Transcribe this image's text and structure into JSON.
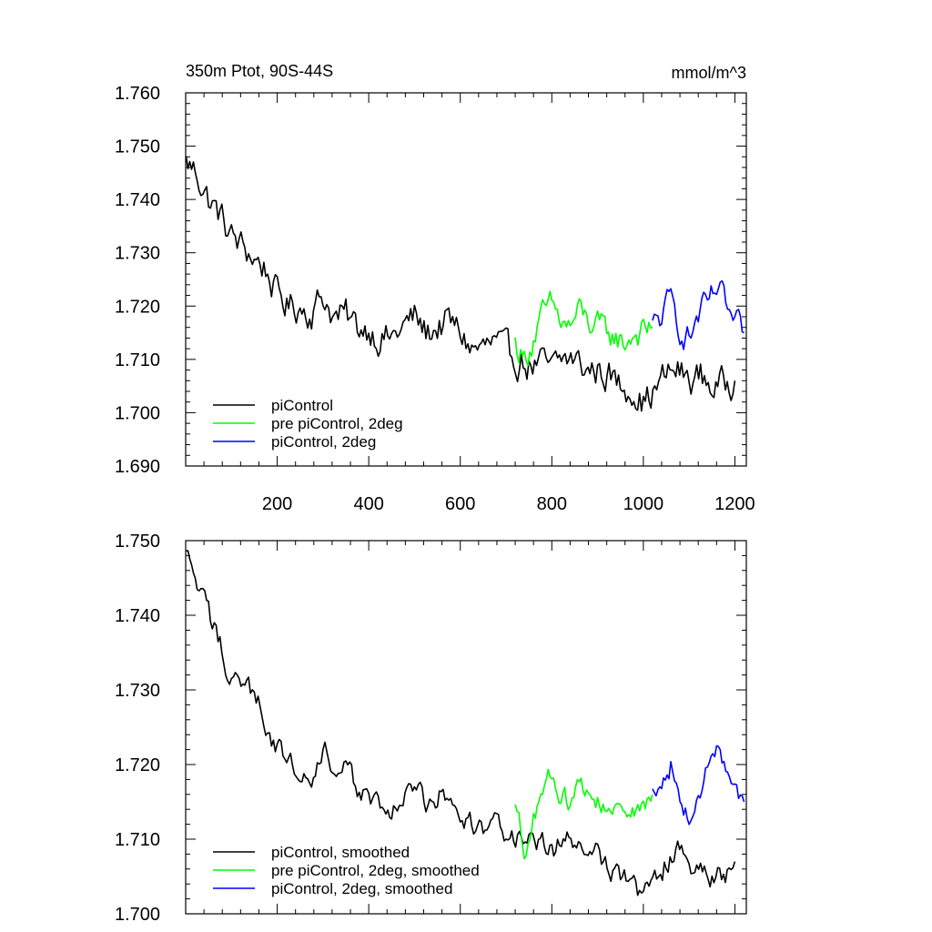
{
  "chart_data": [
    {
      "type": "line",
      "title": "350m Ptot, 90S-44S",
      "units": "mmol/m^3",
      "xlim": [
        0,
        1225
      ],
      "ylim": [
        1.69,
        1.76
      ],
      "xticks": [
        200,
        400,
        600,
        800,
        1000,
        1200
      ],
      "xtick_labels": [
        "200",
        "400",
        "600",
        "800",
        "1000",
        "1200"
      ],
      "yticks": [
        1.69,
        1.7,
        1.71,
        1.72,
        1.73,
        1.74,
        1.75,
        1.76
      ],
      "ytick_labels": [
        "1.690",
        "1.700",
        "1.710",
        "1.720",
        "1.730",
        "1.740",
        "1.750",
        "1.760"
      ],
      "legend_position": "bottom-left",
      "series": [
        {
          "name": "piControl",
          "color": "#000000",
          "x": [
            1,
            25,
            50,
            75,
            100,
            125,
            150,
            175,
            200,
            225,
            250,
            275,
            300,
            325,
            350,
            375,
            400,
            425,
            450,
            475,
            500,
            525,
            550,
            575,
            600,
            625,
            650,
            675,
            700,
            725,
            750,
            775,
            800,
            825,
            850,
            875,
            900,
            925,
            950,
            975,
            1000,
            1025,
            1050,
            1075,
            1100,
            1125,
            1150,
            1175,
            1200
          ],
          "y": [
            1.747,
            1.745,
            1.74,
            1.737,
            1.733,
            1.731,
            1.729,
            1.727,
            1.722,
            1.72,
            1.72,
            1.719,
            1.722,
            1.718,
            1.718,
            1.716,
            1.716,
            1.714,
            1.714,
            1.716,
            1.718,
            1.715,
            1.716,
            1.717,
            1.715,
            1.712,
            1.712,
            1.713,
            1.711,
            1.71,
            1.709,
            1.709,
            1.708,
            1.71,
            1.71,
            1.708,
            1.708,
            1.707,
            1.705,
            1.705,
            1.702,
            1.704,
            1.707,
            1.708,
            1.706,
            1.707,
            1.705,
            1.705,
            1.706
          ]
        },
        {
          "name": "pre piControl, 2deg",
          "color": "#00ff00",
          "x": [
            720,
            740,
            760,
            780,
            800,
            820,
            840,
            860,
            880,
            900,
            920,
            940,
            960,
            980,
            1000,
            1020
          ],
          "y": [
            1.713,
            1.71,
            1.714,
            1.718,
            1.72,
            1.717,
            1.716,
            1.719,
            1.717,
            1.716,
            1.715,
            1.714,
            1.713,
            1.715,
            1.715,
            1.716
          ]
        },
        {
          "name": "piControl, 2deg",
          "color": "#0000ff",
          "x": [
            1020,
            1040,
            1060,
            1080,
            1100,
            1120,
            1140,
            1160,
            1180,
            1200,
            1220
          ],
          "y": [
            1.716,
            1.718,
            1.721,
            1.716,
            1.714,
            1.718,
            1.72,
            1.723,
            1.72,
            1.716,
            1.715
          ]
        }
      ]
    },
    {
      "type": "line",
      "xlim": [
        0,
        1225
      ],
      "ylim": [
        1.7,
        1.75
      ],
      "xticks": [
        200,
        400,
        600,
        800,
        1000,
        1200
      ],
      "yticks": [
        1.7,
        1.71,
        1.72,
        1.73,
        1.74,
        1.75
      ],
      "ytick_labels": [
        "1.700",
        "1.710",
        "1.720",
        "1.730",
        "1.740",
        "1.750"
      ],
      "legend_position": "bottom-left",
      "series": [
        {
          "name": "piControl, smoothed",
          "color": "#000000",
          "x": [
            1,
            25,
            50,
            75,
            100,
            125,
            150,
            175,
            200,
            225,
            250,
            275,
            300,
            325,
            350,
            375,
            400,
            425,
            450,
            475,
            500,
            525,
            550,
            575,
            600,
            625,
            650,
            675,
            700,
            725,
            750,
            775,
            800,
            825,
            850,
            875,
            900,
            925,
            950,
            975,
            1000,
            1025,
            1050,
            1075,
            1100,
            1125,
            1150,
            1175,
            1200
          ],
          "y": [
            1.748,
            1.744,
            1.74,
            1.736,
            1.732,
            1.731,
            1.729,
            1.726,
            1.722,
            1.72,
            1.72,
            1.719,
            1.723,
            1.718,
            1.719,
            1.717,
            1.716,
            1.714,
            1.714,
            1.716,
            1.717,
            1.714,
            1.716,
            1.716,
            1.714,
            1.712,
            1.711,
            1.713,
            1.711,
            1.71,
            1.709,
            1.709,
            1.708,
            1.71,
            1.71,
            1.708,
            1.708,
            1.707,
            1.705,
            1.705,
            1.702,
            1.704,
            1.707,
            1.708,
            1.706,
            1.707,
            1.705,
            1.705,
            1.707
          ]
        },
        {
          "name": "pre piControl, 2deg, smoothed",
          "color": "#00ff00",
          "x": [
            720,
            740,
            760,
            780,
            800,
            820,
            840,
            860,
            880,
            900,
            920,
            940,
            960,
            980,
            1000,
            1020
          ],
          "y": [
            1.714,
            1.709,
            1.713,
            1.717,
            1.719,
            1.716,
            1.715,
            1.718,
            1.717,
            1.715,
            1.714,
            1.714,
            1.712,
            1.714,
            1.715,
            1.716
          ]
        },
        {
          "name": "piControl, 2deg, smoothed",
          "color": "#0000ff",
          "x": [
            1020,
            1040,
            1060,
            1080,
            1100,
            1120,
            1140,
            1160,
            1180,
            1200,
            1220
          ],
          "y": [
            1.716,
            1.716,
            1.72,
            1.715,
            1.713,
            1.717,
            1.719,
            1.722,
            1.719,
            1.716,
            1.715
          ]
        }
      ]
    }
  ]
}
